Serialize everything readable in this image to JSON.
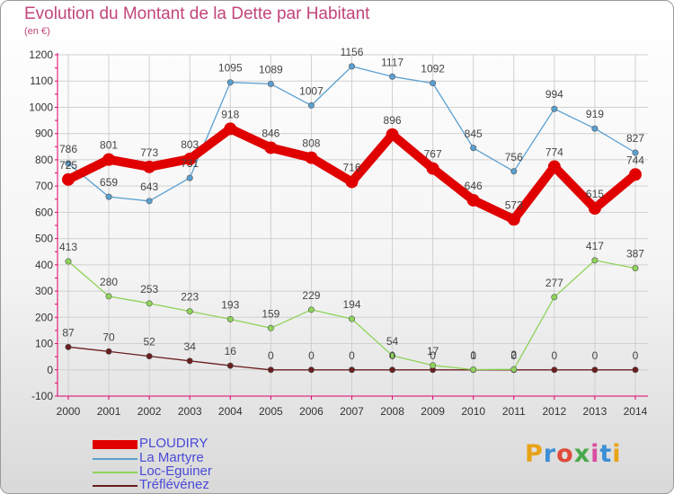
{
  "header": {
    "title": "Evolution du Montant de la Dette par Habitant",
    "subtitle": "(en €)"
  },
  "logo": {
    "text": "Proxiti",
    "colors": [
      "#e8a317",
      "#3b8fd6",
      "#e04a3a",
      "#4aa84a",
      "#d94fa0",
      "#3b8fd6",
      "#e8a317"
    ]
  },
  "colors": {
    "title": "#c2457a",
    "axis": "#e0006b",
    "grid": "#d0d0d0",
    "legend_text": "#4a4ad8"
  },
  "chart_data": {
    "type": "line",
    "title": "Evolution du Montant de la Dette par Habitant",
    "subtitle": "(en €)",
    "xlabel": "",
    "ylabel": "",
    "x": [
      "2000",
      "2001",
      "2002",
      "2003",
      "2004",
      "2005",
      "2006",
      "2007",
      "2008",
      "2009",
      "2010",
      "2011",
      "2012",
      "2013",
      "2014"
    ],
    "ylim": [
      -100,
      1200
    ],
    "yticks": [
      -100,
      0,
      100,
      200,
      300,
      400,
      500,
      600,
      700,
      800,
      900,
      1000,
      1100,
      1200
    ],
    "grid": true,
    "legend_position": "bottom-left",
    "series": [
      {
        "name": "PLOUDIRY",
        "color": "#e00000",
        "values": [
          725,
          801,
          773,
          803,
          918,
          846,
          808,
          716,
          896,
          767,
          646,
          573,
          774,
          615,
          744
        ]
      },
      {
        "name": "La Martyre",
        "color": "#5aa0d0",
        "values": [
          786,
          659,
          643,
          731,
          1095,
          1089,
          1007,
          1156,
          1117,
          1092,
          845,
          756,
          994,
          919,
          827
        ]
      },
      {
        "name": "Loc-Eguiner",
        "color": "#8ed35a",
        "values": [
          413,
          280,
          253,
          223,
          193,
          159,
          229,
          194,
          54,
          17,
          1,
          2,
          277,
          417,
          387
        ]
      },
      {
        "name": "Tréflévénez",
        "color": "#6a1e1e",
        "values": [
          87,
          70,
          52,
          34,
          16,
          0,
          0,
          0,
          0,
          0,
          0,
          0,
          0,
          0,
          0
        ]
      }
    ]
  }
}
